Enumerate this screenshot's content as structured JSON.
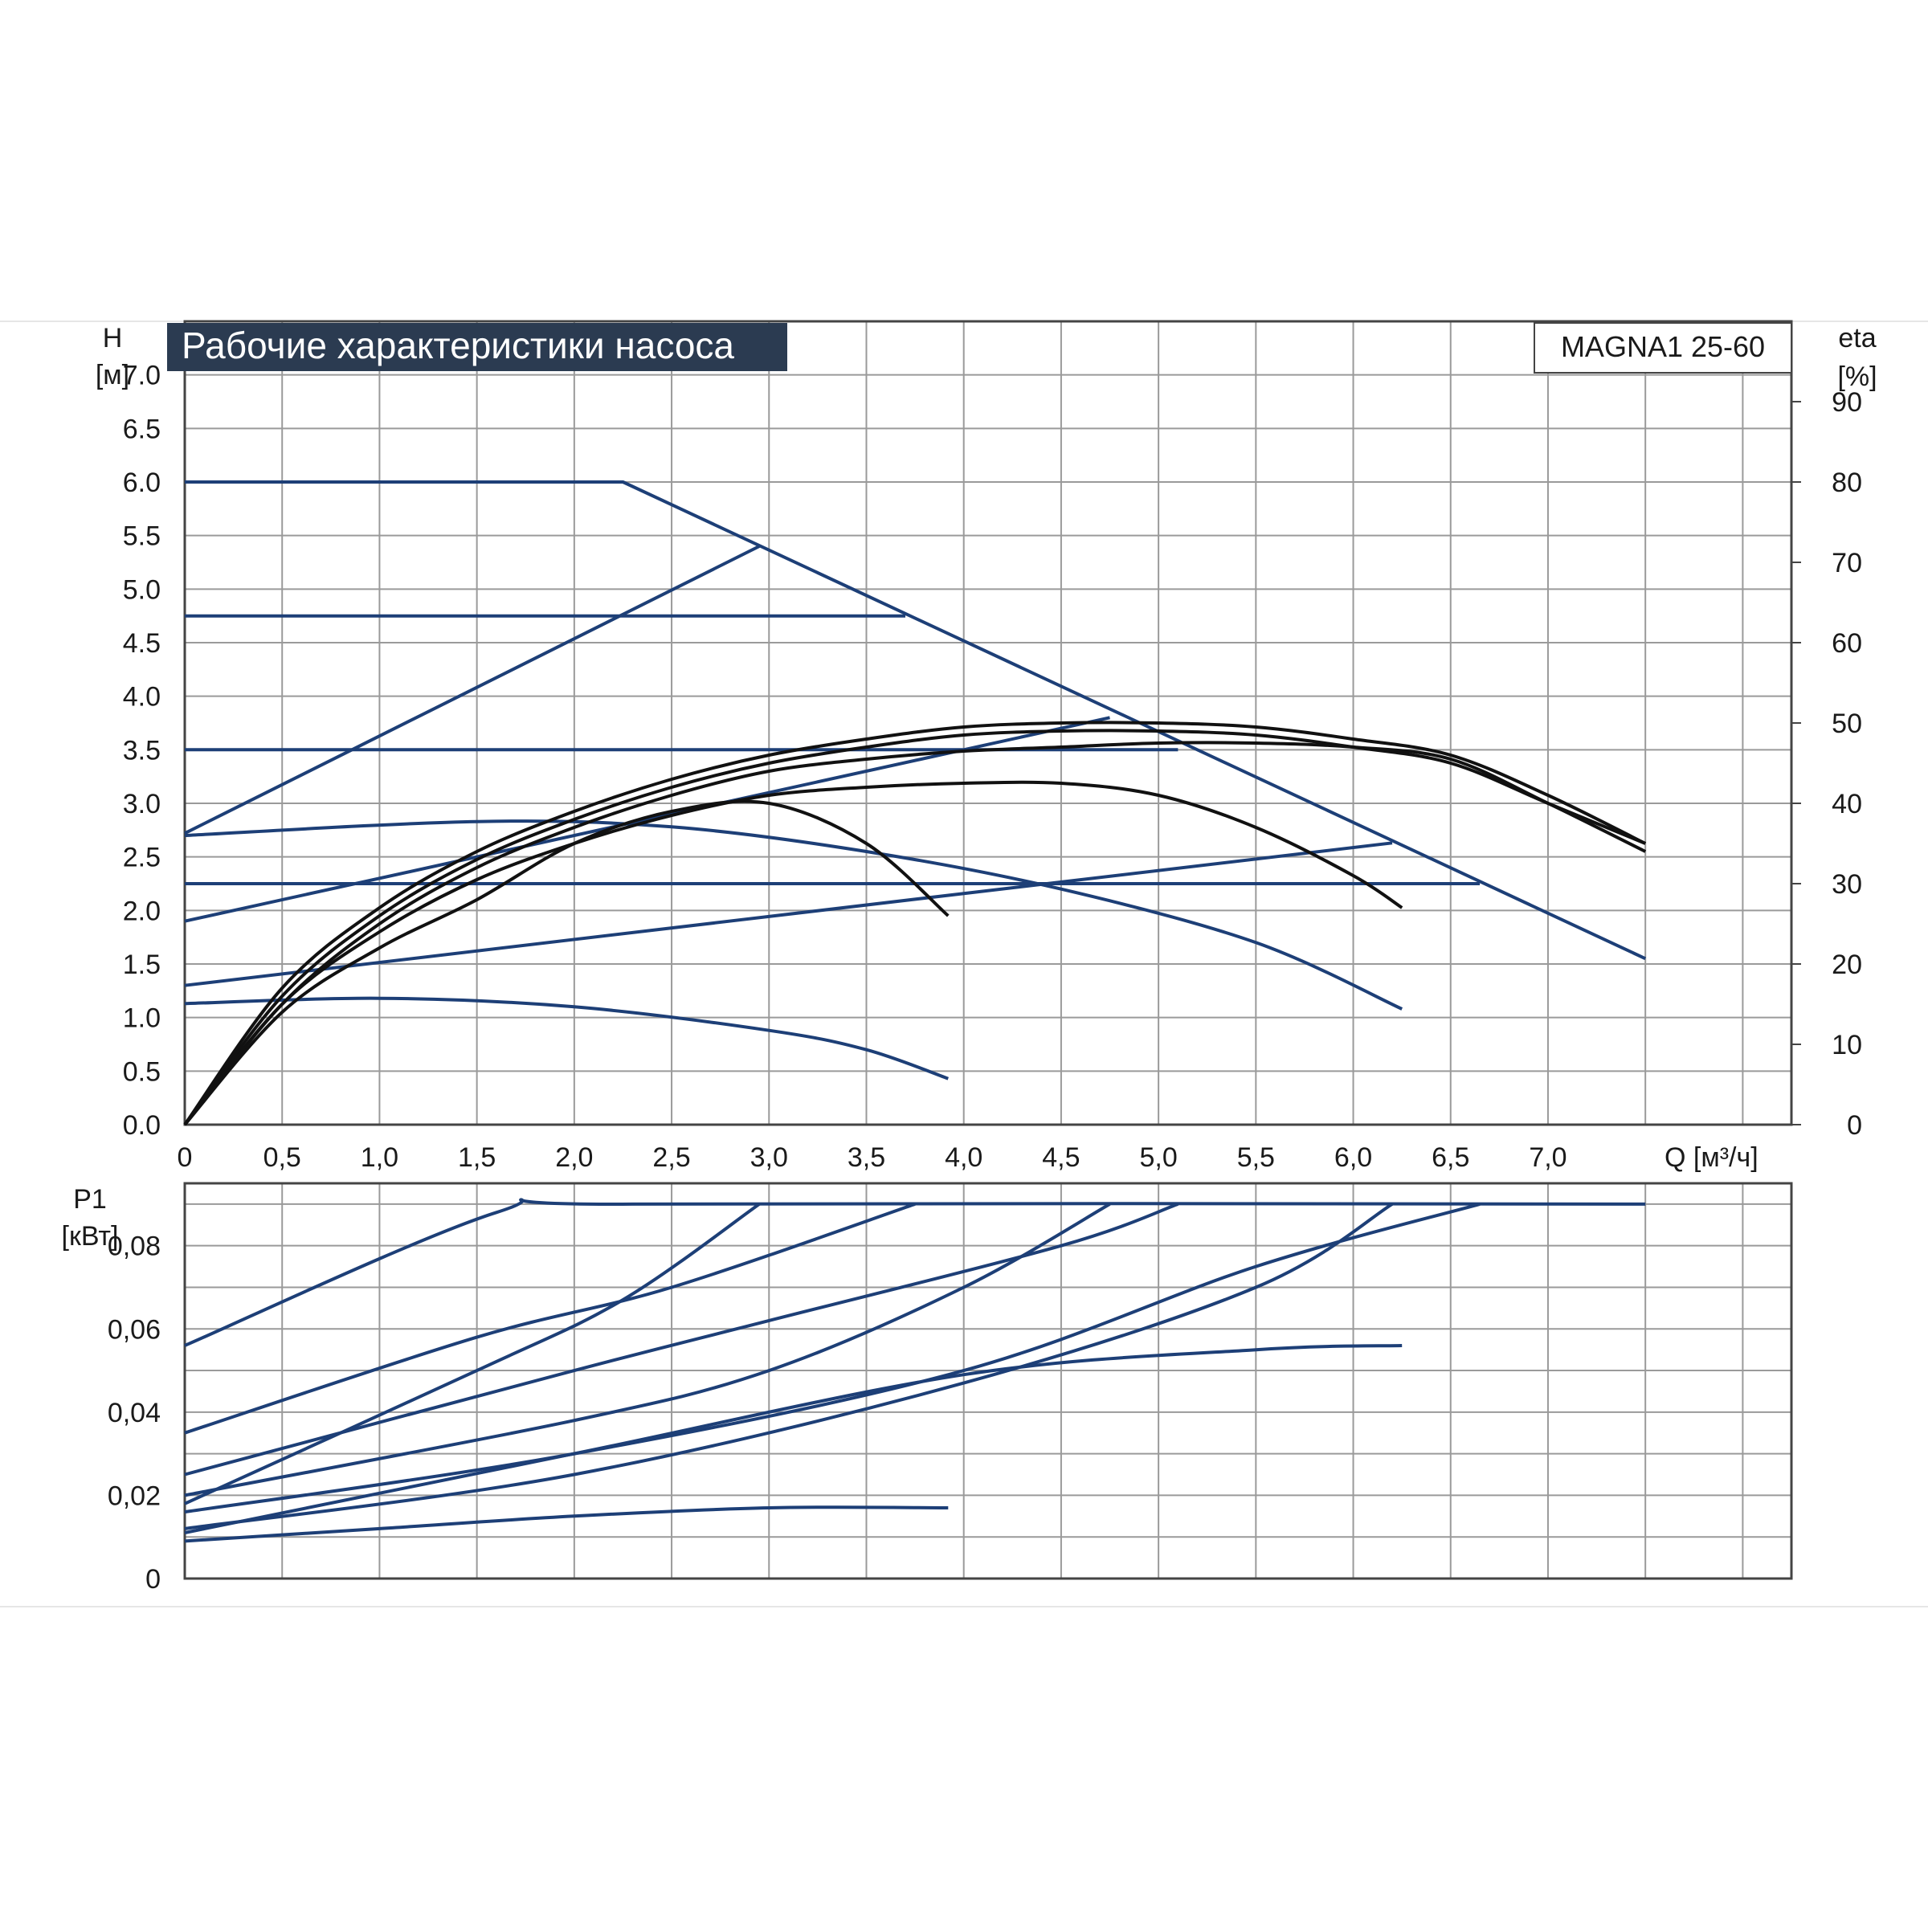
{
  "chart_data": [
    {
      "type": "line",
      "title": "Рабочие характеристики насоса",
      "model_label": "MAGNA1 25-60",
      "ylabel": "H",
      "yunit": "[м]",
      "y2label": "eta",
      "y2unit": "[%]",
      "xlabel": "Q [м³/ч]",
      "xlim": [
        0,
        8.25
      ],
      "ylim": [
        0,
        7.5
      ],
      "y2lim": [
        0,
        100
      ],
      "grid": true,
      "x_tick_labels": [
        "0",
        "0,5",
        "1,0",
        "1,5",
        "2,0",
        "2,5",
        "3,0",
        "3,5",
        "4,0",
        "4,5",
        "5,0",
        "5,5",
        "6,0",
        "6,5",
        "7,0"
      ],
      "y_tick_labels": [
        "0.0",
        "0.5",
        "1.0",
        "1.5",
        "2.0",
        "2.5",
        "3.0",
        "3.5",
        "4.0",
        "4.5",
        "5.0",
        "5.5",
        "6.0",
        "6.5",
        "7.0"
      ],
      "y2_tick_labels": [
        "0",
        "10",
        "20",
        "30",
        "40",
        "50",
        "60",
        "70",
        "80",
        "90"
      ],
      "colors": {
        "head": "#1d3f77",
        "efficiency": "#111111",
        "title_bg": "#2b3b51"
      },
      "series": [
        {
          "kind": "head",
          "points": [
            [
              0,
              6.0
            ],
            [
              2.25,
              6.0
            ],
            [
              7.5,
              1.55
            ]
          ]
        },
        {
          "kind": "head",
          "points": [
            [
              0,
              4.75
            ],
            [
              3.7,
              4.75
            ]
          ]
        },
        {
          "kind": "head",
          "points": [
            [
              0,
              3.5
            ],
            [
              5.1,
              3.5
            ]
          ]
        },
        {
          "kind": "head",
          "points": [
            [
              0,
              2.25
            ],
            [
              6.65,
              2.25
            ]
          ]
        },
        {
          "kind": "head",
          "points": [
            [
              0,
              2.72
            ],
            [
              2.95,
              5.4
            ]
          ]
        },
        {
          "kind": "head",
          "points": [
            [
              0,
              1.9
            ],
            [
              4.75,
              3.8
            ]
          ]
        },
        {
          "kind": "head",
          "points": [
            [
              0,
              1.3
            ],
            [
              6.2,
              2.63
            ]
          ]
        },
        {
          "kind": "head",
          "points": [
            [
              0,
              2.7
            ],
            [
              1.5,
              2.83
            ],
            [
              2.5,
              2.78
            ],
            [
              3.5,
              2.55
            ],
            [
              4.5,
              2.2
            ],
            [
              5.5,
              1.7
            ],
            [
              6.25,
              1.08
            ]
          ]
        },
        {
          "kind": "head",
          "points": [
            [
              0,
              1.13
            ],
            [
              1.0,
              1.18
            ],
            [
              2.0,
              1.1
            ],
            [
              3.0,
              0.88
            ],
            [
              3.5,
              0.7
            ],
            [
              3.92,
              0.43
            ]
          ]
        },
        {
          "kind": "efficiency",
          "points": [
            [
              0,
              0
            ],
            [
              0.5,
              15
            ],
            [
              1.0,
              24
            ],
            [
              1.5,
              30.5
            ],
            [
              2.0,
              35
            ],
            [
              2.5,
              38.5
            ],
            [
              3.0,
              41
            ],
            [
              3.5,
              42
            ],
            [
              4.0,
              42.5
            ],
            [
              4.5,
              42.5
            ],
            [
              5.0,
              41
            ],
            [
              5.5,
              37
            ],
            [
              6.0,
              31
            ],
            [
              6.25,
              27
            ]
          ]
        },
        {
          "kind": "efficiency",
          "points": [
            [
              0,
              0
            ],
            [
              0.5,
              16
            ],
            [
              1.0,
              26
            ],
            [
              1.5,
              33
            ],
            [
              2.0,
              38
            ],
            [
              2.5,
              42
            ],
            [
              3.0,
              45
            ],
            [
              3.5,
              47
            ],
            [
              4.0,
              48.5
            ],
            [
              4.5,
              49
            ],
            [
              5.0,
              49
            ],
            [
              5.5,
              48.5
            ],
            [
              6.0,
              47
            ],
            [
              6.5,
              45
            ],
            [
              7.0,
              40
            ],
            [
              7.5,
              35
            ]
          ]
        },
        {
          "kind": "efficiency",
          "points": [
            [
              0,
              0
            ],
            [
              0.5,
              15
            ],
            [
              1.0,
              25
            ],
            [
              1.5,
              32
            ],
            [
              2.0,
              37
            ],
            [
              2.5,
              41
            ],
            [
              3.0,
              44
            ],
            [
              3.5,
              45.5
            ],
            [
              4.0,
              46.5
            ],
            [
              4.5,
              47
            ],
            [
              5.0,
              47.5
            ],
            [
              5.5,
              47.5
            ],
            [
              6.0,
              47
            ],
            [
              6.5,
              45.5
            ],
            [
              7.0,
              40
            ],
            [
              7.5,
              34
            ]
          ]
        },
        {
          "kind": "efficiency",
          "points": [
            [
              0,
              0
            ],
            [
              0.5,
              14
            ],
            [
              1.0,
              22
            ],
            [
              1.5,
              28
            ],
            [
              2.0,
              35
            ],
            [
              2.5,
              39
            ],
            [
              3.0,
              40
            ],
            [
              3.5,
              35
            ],
            [
              3.92,
              26
            ]
          ]
        },
        {
          "kind": "efficiency",
          "points": [
            [
              0,
              0
            ],
            [
              0.5,
              17
            ],
            [
              1.0,
              27
            ],
            [
              1.5,
              34
            ],
            [
              2.0,
              39
            ],
            [
              2.5,
              43
            ],
            [
              3.0,
              46
            ],
            [
              3.5,
              48
            ],
            [
              4.0,
              49.5
            ],
            [
              4.5,
              50
            ],
            [
              5.0,
              50
            ],
            [
              5.5,
              49.5
            ],
            [
              6.0,
              48
            ],
            [
              6.5,
              46
            ],
            [
              7.0,
              41
            ],
            [
              7.5,
              35
            ]
          ]
        }
      ]
    },
    {
      "type": "line",
      "ylabel": "P1",
      "yunit": "[кВт]",
      "xlim": [
        0,
        8.25
      ],
      "ylim": [
        0,
        0.095
      ],
      "grid": true,
      "y_tick_labels": [
        "0",
        "0,02",
        "0,04",
        "0,06",
        "0,08"
      ],
      "colors": {
        "power": "#1d3f77"
      },
      "series": [
        {
          "kind": "power",
          "points": [
            [
              0,
              0.056
            ],
            [
              1.6,
              0.088
            ],
            [
              2.3,
              0.09
            ],
            [
              7.5,
              0.09
            ]
          ]
        },
        {
          "kind": "power",
          "points": [
            [
              0,
              0.035
            ],
            [
              1.5,
              0.058
            ],
            [
              2.5,
              0.07
            ],
            [
              3.75,
              0.09
            ]
          ]
        },
        {
          "kind": "power",
          "points": [
            [
              0,
              0.018
            ],
            [
              1.5,
              0.05
            ],
            [
              2.25,
              0.067
            ],
            [
              2.95,
              0.09
            ]
          ]
        },
        {
          "kind": "power",
          "points": [
            [
              0,
              0.025
            ],
            [
              2.0,
              0.05
            ],
            [
              3.0,
              0.062
            ],
            [
              4.5,
              0.08
            ],
            [
              5.1,
              0.09
            ]
          ]
        },
        {
          "kind": "power",
          "points": [
            [
              0,
              0.02
            ],
            [
              2.0,
              0.038
            ],
            [
              3.0,
              0.05
            ],
            [
              4.0,
              0.07
            ],
            [
              4.75,
              0.09
            ]
          ]
        },
        {
          "kind": "power",
          "points": [
            [
              0,
              0.016
            ],
            [
              2.0,
              0.03
            ],
            [
              4.0,
              0.05
            ],
            [
              5.5,
              0.075
            ],
            [
              6.65,
              0.09
            ]
          ]
        },
        {
          "kind": "power",
          "points": [
            [
              0,
              0.012
            ],
            [
              2.0,
              0.025
            ],
            [
              4.0,
              0.047
            ],
            [
              5.5,
              0.07
            ],
            [
              6.2,
              0.09
            ]
          ]
        },
        {
          "kind": "power",
          "points": [
            [
              0,
              0.011
            ],
            [
              2.0,
              0.03
            ],
            [
              4.0,
              0.049
            ],
            [
              5.5,
              0.055
            ],
            [
              6.25,
              0.056
            ]
          ]
        },
        {
          "kind": "power",
          "points": [
            [
              0,
              0.009
            ],
            [
              1.0,
              0.012
            ],
            [
              2.0,
              0.015
            ],
            [
              3.0,
              0.017
            ],
            [
              3.92,
              0.017
            ]
          ]
        }
      ]
    }
  ]
}
